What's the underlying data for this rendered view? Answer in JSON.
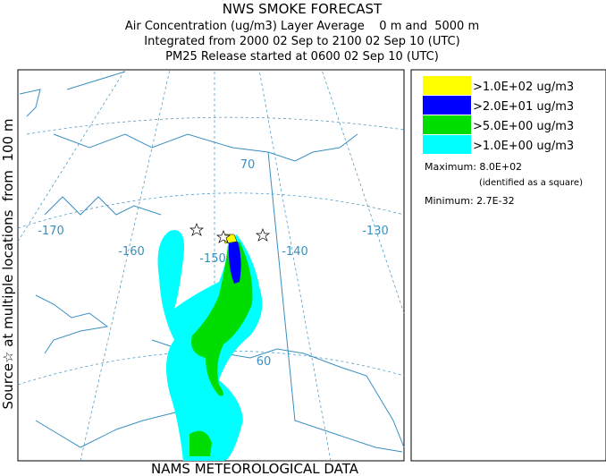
{
  "header": {
    "title": "NWS SMOKE FORECAST",
    "lines": [
      "Air Concentration (ug/m3) Layer Average    0 m and  5000 m",
      "Integrated from 2000 02 Sep to 2100 02 Sep 10 (UTC)",
      "PM25 Release started at 0600 02 Sep 10 (UTC)"
    ]
  },
  "side_label": "Source☆ at multiple locations  from  100 m",
  "footer": "NAMS METEOROLOGICAL DATA",
  "legend": {
    "entries": [
      {
        "label": ">1.0E+02 ug/m3",
        "color": "#ffff00"
      },
      {
        "label": ">2.0E+01 ug/m3",
        "color": "#0000ff"
      },
      {
        "label": ">5.0E+00 ug/m3",
        "color": "#00dd00"
      },
      {
        "label": ">1.0E+00 ug/m3",
        "color": "#00ffff"
      }
    ],
    "maximum": "Maximum: 8.0E+02",
    "maximum_note": "(identified as a square)",
    "minimum": "Minimum: 2.7E-32"
  },
  "map": {
    "labels": [
      "-170",
      "-160",
      "-150",
      "-140",
      "-130",
      "70",
      "60"
    ]
  }
}
